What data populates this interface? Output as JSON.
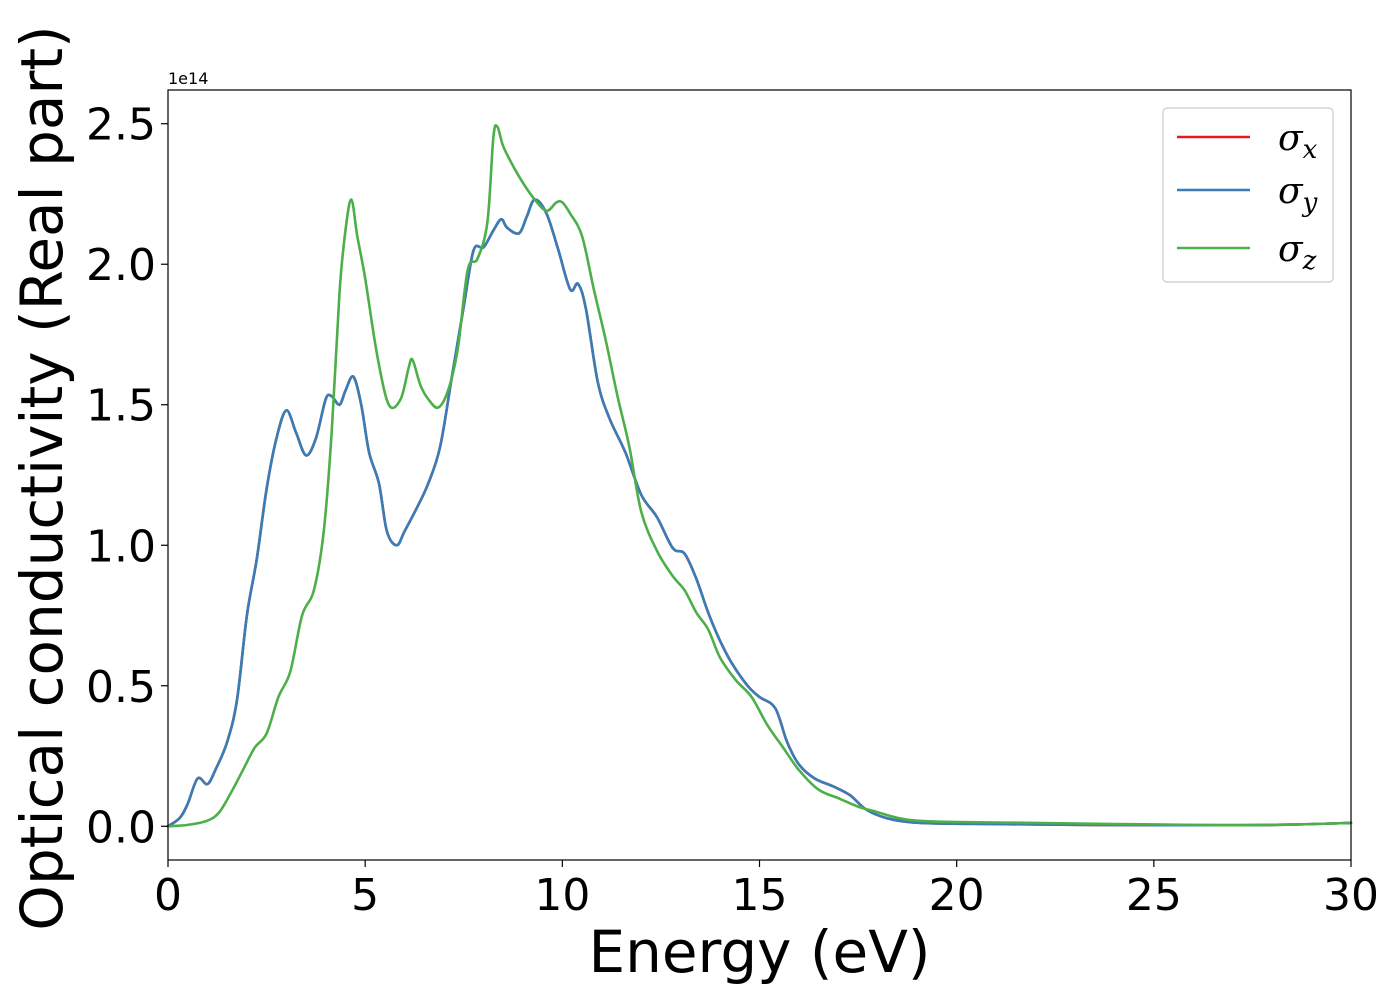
{
  "chart_data": {
    "type": "line",
    "xlabel": "Energy (eV)",
    "ylabel": "Optical conductivity (Real part)",
    "y_offset_label": "1e14",
    "xlim": [
      0,
      30
    ],
    "ylim": [
      -0.12,
      2.62
    ],
    "xticks": [
      0,
      5,
      10,
      15,
      20,
      25,
      30
    ],
    "xtick_labels": [
      "0",
      "5",
      "10",
      "15",
      "20",
      "25",
      "30"
    ],
    "yticks": [
      0.0,
      0.5,
      1.0,
      1.5,
      2.0,
      2.5
    ],
    "ytick_labels": [
      "0.0",
      "0.5",
      "1.0",
      "1.5",
      "2.0",
      "2.5"
    ],
    "legend_position": "top-right",
    "grid": false,
    "series": [
      {
        "name": "σx",
        "legend_base": "σ",
        "legend_sub": "x",
        "color": "#e41a1c",
        "x": [
          0,
          0.3,
          0.5,
          0.75,
          1.0,
          1.2,
          1.5,
          1.75,
          2.0,
          2.25,
          2.5,
          2.75,
          3.0,
          3.25,
          3.5,
          3.75,
          4.0,
          4.15,
          4.35,
          4.5,
          4.7,
          4.9,
          5.1,
          5.35,
          5.55,
          5.8,
          6.0,
          6.3,
          6.6,
          6.9,
          7.2,
          7.5,
          7.75,
          8.0,
          8.25,
          8.45,
          8.6,
          8.9,
          9.1,
          9.3,
          9.6,
          9.9,
          10.2,
          10.4,
          10.6,
          10.9,
          11.2,
          11.6,
          12.0,
          12.4,
          12.8,
          13.1,
          13.4,
          13.7,
          14.0,
          14.3,
          14.7,
          15.0,
          15.4,
          15.7,
          16.0,
          16.4,
          16.9,
          17.3,
          17.7,
          18.2,
          18.8,
          19.5,
          21,
          23,
          25,
          27,
          28.5,
          30
        ],
        "y": [
          0.0,
          0.03,
          0.08,
          0.17,
          0.15,
          0.2,
          0.3,
          0.45,
          0.75,
          0.95,
          1.2,
          1.38,
          1.48,
          1.4,
          1.32,
          1.38,
          1.52,
          1.53,
          1.5,
          1.55,
          1.6,
          1.5,
          1.33,
          1.22,
          1.05,
          1.0,
          1.05,
          1.13,
          1.22,
          1.35,
          1.6,
          1.85,
          2.05,
          2.06,
          2.12,
          2.16,
          2.13,
          2.11,
          2.17,
          2.23,
          2.18,
          2.05,
          1.91,
          1.93,
          1.84,
          1.58,
          1.45,
          1.33,
          1.18,
          1.1,
          0.99,
          0.97,
          0.88,
          0.76,
          0.66,
          0.58,
          0.5,
          0.46,
          0.42,
          0.3,
          0.22,
          0.17,
          0.14,
          0.11,
          0.06,
          0.03,
          0.015,
          0.01,
          0.008,
          0.005,
          0.004,
          0.004,
          0.006,
          0.012
        ]
      },
      {
        "name": "σy",
        "legend_base": "σ",
        "legend_sub": "y",
        "color": "#377eb8",
        "x": [
          0,
          0.3,
          0.5,
          0.75,
          1.0,
          1.2,
          1.5,
          1.75,
          2.0,
          2.25,
          2.5,
          2.75,
          3.0,
          3.25,
          3.5,
          3.75,
          4.0,
          4.15,
          4.35,
          4.5,
          4.7,
          4.9,
          5.1,
          5.35,
          5.55,
          5.8,
          6.0,
          6.3,
          6.6,
          6.9,
          7.2,
          7.5,
          7.75,
          8.0,
          8.25,
          8.45,
          8.6,
          8.9,
          9.1,
          9.3,
          9.6,
          9.9,
          10.2,
          10.4,
          10.6,
          10.9,
          11.2,
          11.6,
          12.0,
          12.4,
          12.8,
          13.1,
          13.4,
          13.7,
          14.0,
          14.3,
          14.7,
          15.0,
          15.4,
          15.7,
          16.0,
          16.4,
          16.9,
          17.3,
          17.7,
          18.2,
          18.8,
          19.5,
          21,
          23,
          25,
          27,
          28.5,
          30
        ],
        "y": [
          0.0,
          0.03,
          0.08,
          0.17,
          0.15,
          0.2,
          0.3,
          0.45,
          0.75,
          0.95,
          1.2,
          1.38,
          1.48,
          1.4,
          1.32,
          1.38,
          1.52,
          1.53,
          1.5,
          1.55,
          1.6,
          1.5,
          1.33,
          1.22,
          1.05,
          1.0,
          1.05,
          1.13,
          1.22,
          1.35,
          1.6,
          1.85,
          2.05,
          2.06,
          2.12,
          2.16,
          2.13,
          2.11,
          2.17,
          2.23,
          2.18,
          2.05,
          1.91,
          1.93,
          1.84,
          1.58,
          1.45,
          1.33,
          1.18,
          1.1,
          0.99,
          0.97,
          0.88,
          0.76,
          0.66,
          0.58,
          0.5,
          0.46,
          0.42,
          0.3,
          0.22,
          0.17,
          0.14,
          0.11,
          0.06,
          0.03,
          0.015,
          0.01,
          0.008,
          0.005,
          0.004,
          0.004,
          0.006,
          0.012
        ]
      },
      {
        "name": "σz",
        "legend_base": "σ",
        "legend_sub": "z",
        "color": "#4daf4a",
        "x": [
          0,
          0.5,
          1.0,
          1.3,
          1.6,
          1.9,
          2.2,
          2.5,
          2.8,
          3.1,
          3.4,
          3.7,
          3.95,
          4.15,
          4.35,
          4.5,
          4.65,
          4.8,
          5.0,
          5.3,
          5.6,
          5.9,
          6.1,
          6.2,
          6.4,
          6.6,
          6.85,
          7.1,
          7.35,
          7.6,
          7.85,
          8.1,
          8.25,
          8.35,
          8.5,
          8.75,
          9.0,
          9.3,
          9.6,
          9.85,
          10.0,
          10.2,
          10.5,
          10.8,
          11.1,
          11.4,
          11.7,
          12.0,
          12.4,
          12.8,
          13.1,
          13.4,
          13.7,
          14.0,
          14.4,
          14.8,
          15.2,
          15.6,
          16.0,
          16.5,
          17.0,
          17.5,
          18.0,
          18.5,
          19.0,
          20.0,
          22,
          24,
          26,
          27,
          28.5,
          30
        ],
        "y": [
          0.0,
          0.005,
          0.02,
          0.05,
          0.12,
          0.2,
          0.28,
          0.33,
          0.46,
          0.55,
          0.75,
          0.84,
          1.05,
          1.4,
          1.9,
          2.12,
          2.23,
          2.1,
          1.95,
          1.68,
          1.5,
          1.52,
          1.63,
          1.66,
          1.57,
          1.52,
          1.49,
          1.55,
          1.7,
          1.98,
          2.02,
          2.15,
          2.45,
          2.49,
          2.42,
          2.35,
          2.29,
          2.23,
          2.19,
          2.22,
          2.22,
          2.18,
          2.1,
          1.91,
          1.73,
          1.53,
          1.35,
          1.12,
          0.98,
          0.89,
          0.84,
          0.76,
          0.7,
          0.6,
          0.52,
          0.46,
          0.36,
          0.28,
          0.2,
          0.13,
          0.1,
          0.07,
          0.05,
          0.03,
          0.02,
          0.015,
          0.012,
          0.008,
          0.005,
          0.004,
          0.006,
          0.012
        ]
      }
    ]
  }
}
